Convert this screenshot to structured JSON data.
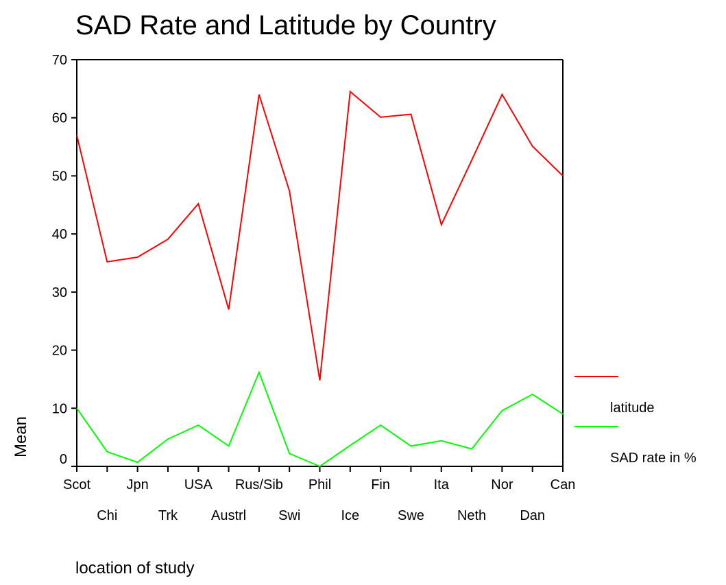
{
  "chart_data": {
    "type": "line",
    "title": "SAD Rate and Latitude by Country",
    "xlabel": "location of study",
    "ylabel": "Mean",
    "categories": [
      "Scot",
      "Chi",
      "Jpn",
      "Trk",
      "USA",
      "Austrl",
      "Rus/Sib",
      "Swi",
      "Phil",
      "Ice",
      "Fin",
      "Swe",
      "Ita",
      "Neth",
      "Nor",
      "Dan",
      "Can"
    ],
    "series": [
      {
        "name": "latitude",
        "color": "#ff0000",
        "values": [
          57,
          35.2,
          36,
          39.1,
          45.2,
          27,
          64,
          47.4,
          14.8,
          64.5,
          60.1,
          60.6,
          41.6,
          52.7,
          64,
          55.1,
          50
        ]
      },
      {
        "name": "SAD rate in %",
        "color": "#00ff00",
        "values": [
          10,
          2.5,
          0.7,
          4.7,
          7.1,
          3.5,
          16.2,
          2.2,
          0,
          3.6,
          7.1,
          3.5,
          4.4,
          3,
          9.6,
          12.4,
          9
        ]
      }
    ],
    "yticks": [
      0,
      10,
      20,
      30,
      40,
      50,
      60,
      70
    ],
    "ylim": [
      0,
      70
    ],
    "grid": false,
    "legend_position": "right"
  }
}
